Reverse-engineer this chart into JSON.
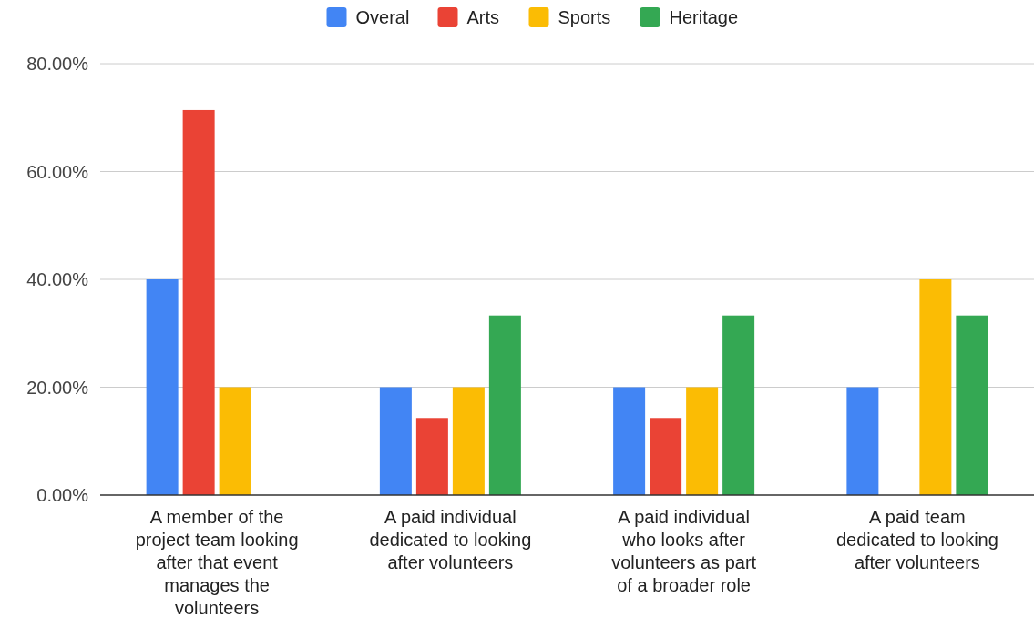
{
  "chart_data": {
    "type": "bar",
    "categories": [
      "A member of the project team looking after that event manages the volunteers",
      "A paid individual dedicated to looking after volunteers",
      "A paid individual who looks after volunteers as part of a broader role",
      "A paid team dedicated to looking after volunteers"
    ],
    "series": [
      {
        "name": "Overal",
        "color": "#4285f4",
        "values": [
          40,
          20,
          20,
          20
        ]
      },
      {
        "name": "Arts",
        "color": "#ea4335",
        "values": [
          71.4,
          14.3,
          14.3,
          0
        ]
      },
      {
        "name": "Sports",
        "color": "#fbbc04",
        "values": [
          20,
          20,
          20,
          40
        ]
      },
      {
        "name": "Heritage",
        "color": "#34a853",
        "values": [
          0,
          33.3,
          33.3,
          33.3
        ]
      }
    ],
    "ylim": [
      0,
      80
    ],
    "yticks": [
      {
        "value": 0,
        "label": "0.00%"
      },
      {
        "value": 20,
        "label": "20.00%"
      },
      {
        "value": 40,
        "label": "40.00%"
      },
      {
        "value": 60,
        "label": "60.00%"
      },
      {
        "value": 80,
        "label": "80.00%"
      }
    ],
    "grid": "y",
    "legend": "top"
  }
}
